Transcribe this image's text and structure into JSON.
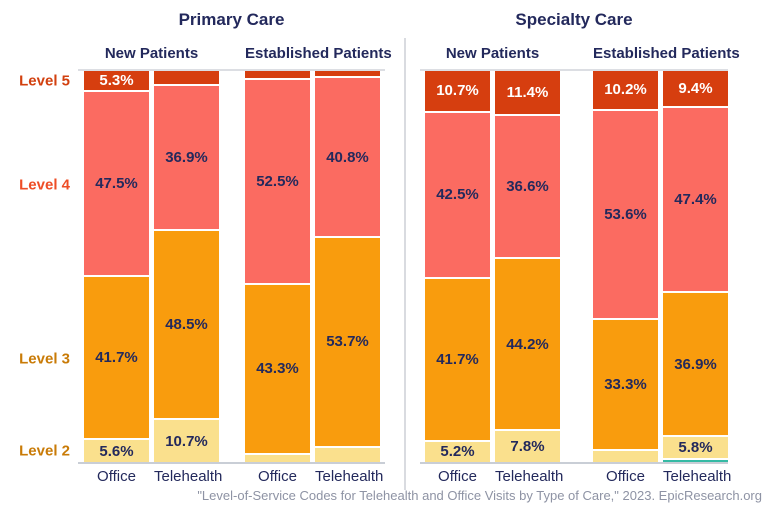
{
  "colors": {
    "text_navy": "#23295c",
    "footer_gray": "#8e93a4",
    "level5": "#d63e0f",
    "level4": "#fb6b61",
    "level3": "#f99c0d",
    "level2": "#fae08d",
    "level1": "#35baa4"
  },
  "footer": {
    "citation": "\"Level-of-Service Codes for Telehealth and Office Visits by Type of Care,\" 2023. EpicResearch.org"
  },
  "chart_data": {
    "type": "bar",
    "stacked": true,
    "unit": "%",
    "legend_position": "left-axis",
    "grid": false,
    "ylim": [
      0,
      100
    ],
    "levels": [
      {
        "id": "level5",
        "name": "Level 5",
        "color": "#d63e0f",
        "axis_label_color": "#d2400f",
        "value_text_color": "#ffffff"
      },
      {
        "id": "level4",
        "name": "Level 4",
        "color": "#fb6b61",
        "axis_label_color": "#ee4d26",
        "value_text_color": "#23295c"
      },
      {
        "id": "level3",
        "name": "Level 3",
        "color": "#f99c0d",
        "axis_label_color": "#c97b07",
        "value_text_color": "#23295c"
      },
      {
        "id": "level2",
        "name": "Level 2",
        "color": "#fae08d",
        "axis_label_color": "#c97b07",
        "value_text_color": "#23295c"
      },
      {
        "id": "level1",
        "name": "",
        "color": "#35baa4",
        "axis_label_color": "#35baa4",
        "value_text_color": "#23295c"
      }
    ],
    "panels": [
      {
        "title": "Primary Care",
        "groups": [
          {
            "label": "New Patients",
            "bars": [
              {
                "label": "Office",
                "values": {
                  "level5": 5.3,
                  "level4": 47.5,
                  "level3": 41.7,
                  "level2": 5.6
                },
                "labels": {
                  "level5": "5.3%",
                  "level4": "47.5%",
                  "level3": "41.7%",
                  "level2": "5.6%"
                }
              },
              {
                "label": "Telehealth",
                "values": {
                  "level5": 3.9,
                  "level4": 36.9,
                  "level3": 48.5,
                  "level2": 10.7
                },
                "labels": {
                  "level4": "36.9%",
                  "level3": "48.5%",
                  "level2": "10.7%"
                }
              }
            ]
          },
          {
            "label": "Established Patients",
            "bars": [
              {
                "label": "Office",
                "values": {
                  "level5": 2.3,
                  "level4": 52.5,
                  "level3": 43.3,
                  "level2": 1.9
                },
                "labels": {
                  "level4": "52.5%",
                  "level3": "43.3%"
                }
              },
              {
                "label": "Telehealth",
                "values": {
                  "level5": 1.9,
                  "level4": 40.8,
                  "level3": 53.7,
                  "level2": 3.6
                },
                "labels": {
                  "level4": "40.8%",
                  "level3": "53.7%"
                }
              }
            ]
          }
        ]
      },
      {
        "title": "Specialty Care",
        "groups": [
          {
            "label": "New Patients",
            "bars": [
              {
                "label": "Office",
                "values": {
                  "level5": 10.7,
                  "level4": 42.5,
                  "level3": 41.7,
                  "level2": 5.2
                },
                "labels": {
                  "level5": "10.7%",
                  "level4": "42.5%",
                  "level3": "41.7%",
                  "level2": "5.2%"
                }
              },
              {
                "label": "Telehealth",
                "values": {
                  "level5": 11.4,
                  "level4": 36.6,
                  "level3": 44.2,
                  "level2": 7.8
                },
                "labels": {
                  "level5": "11.4%",
                  "level4": "36.6%",
                  "level3": "44.2%",
                  "level2": "7.8%"
                }
              }
            ]
          },
          {
            "label": "Established Patients",
            "bars": [
              {
                "label": "Office",
                "values": {
                  "level5": 10.2,
                  "level4": 53.6,
                  "level3": 33.3,
                  "level2": 2.9
                },
                "labels": {
                  "level5": "10.2%",
                  "level4": "53.6%",
                  "level3": "33.3%"
                }
              },
              {
                "label": "Telehealth",
                "values": {
                  "level5": 9.4,
                  "level4": 47.4,
                  "level3": 36.9,
                  "level2": 5.8,
                  "level1": 0.5
                },
                "labels": {
                  "level5": "9.4%",
                  "level4": "47.4%",
                  "level3": "36.9%",
                  "level2": "5.8%"
                }
              }
            ]
          }
        ]
      }
    ]
  }
}
